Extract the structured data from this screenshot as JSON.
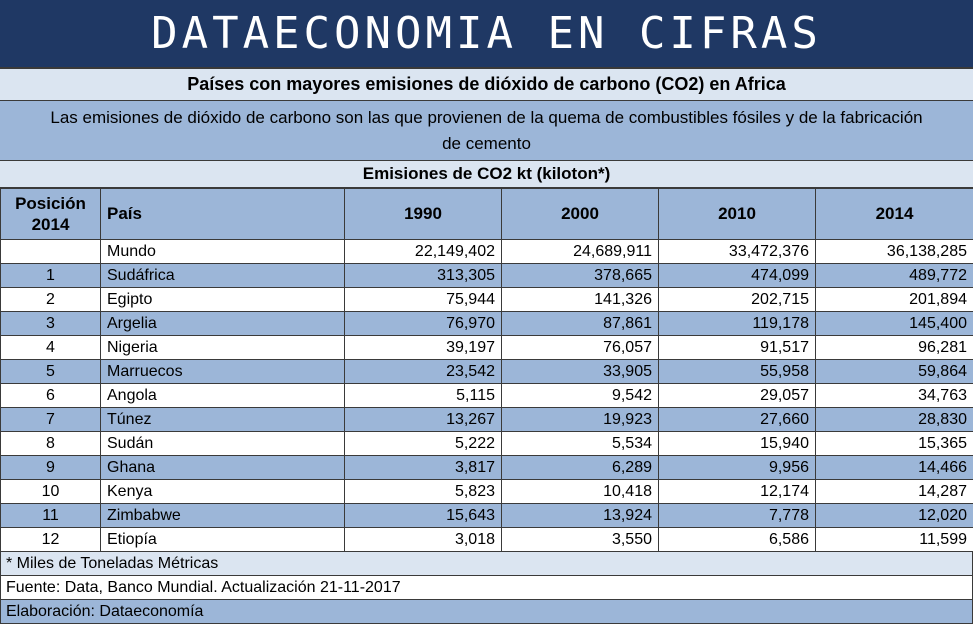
{
  "banner": {
    "title": "DATAECONOMIA EN CIFRAS"
  },
  "subtitle": "Países con mayores emisiones de dióxido de carbono (CO2) en Africa",
  "description": "Las emisiones de dióxido de carbono son las que provienen de la quema de combustibles fósiles y de la fabricación de cemento",
  "units_header": "Emisiones de CO2 kt (kiloton*)",
  "table": {
    "headers": {
      "position": "Posición 2014",
      "country": "País",
      "y1990": "1990",
      "y2000": "2000",
      "y2010": "2010",
      "y2014": "2014"
    },
    "rows": [
      {
        "pos": "",
        "name": "Mundo",
        "v1990": "22,149,402",
        "v2000": "24,689,911",
        "v2010": "33,472,376",
        "v2014": "36,138,285"
      },
      {
        "pos": "1",
        "name": "Sudáfrica",
        "v1990": "313,305",
        "v2000": "378,665",
        "v2010": "474,099",
        "v2014": "489,772"
      },
      {
        "pos": "2",
        "name": "Egipto",
        "v1990": "75,944",
        "v2000": "141,326",
        "v2010": "202,715",
        "v2014": "201,894"
      },
      {
        "pos": "3",
        "name": "Argelia",
        "v1990": "76,970",
        "v2000": "87,861",
        "v2010": "119,178",
        "v2014": "145,400"
      },
      {
        "pos": "4",
        "name": "Nigeria",
        "v1990": "39,197",
        "v2000": "76,057",
        "v2010": "91,517",
        "v2014": "96,281"
      },
      {
        "pos": "5",
        "name": "Marruecos",
        "v1990": "23,542",
        "v2000": "33,905",
        "v2010": "55,958",
        "v2014": "59,864"
      },
      {
        "pos": "6",
        "name": "Angola",
        "v1990": "5,115",
        "v2000": "9,542",
        "v2010": "29,057",
        "v2014": "34,763"
      },
      {
        "pos": "7",
        "name": "Túnez",
        "v1990": "13,267",
        "v2000": "19,923",
        "v2010": "27,660",
        "v2014": "28,830"
      },
      {
        "pos": "8",
        "name": "Sudán",
        "v1990": "5,222",
        "v2000": "5,534",
        "v2010": "15,940",
        "v2014": "15,365"
      },
      {
        "pos": "9",
        "name": "Ghana",
        "v1990": "3,817",
        "v2000": "6,289",
        "v2010": "9,956",
        "v2014": "14,466"
      },
      {
        "pos": "10",
        "name": "Kenya",
        "v1990": "5,823",
        "v2000": "10,418",
        "v2010": "12,174",
        "v2014": "14,287"
      },
      {
        "pos": "11",
        "name": "Zimbabwe",
        "v1990": "15,643",
        "v2000": "13,924",
        "v2010": "7,778",
        "v2014": "12,020"
      },
      {
        "pos": "12",
        "name": "Etiopía",
        "v1990": "3,018",
        "v2000": "3,550",
        "v2010": "6,586",
        "v2014": "11,599"
      }
    ]
  },
  "footer": {
    "note": "* Miles de Toneladas Métricas",
    "source": "Fuente: Data, Banco Mundial. Actualización 21-11-2017",
    "author": "Elaboración: Dataeconomía"
  },
  "colors": {
    "banner_bg": "#1f3864",
    "band_dark": "#9cb6d8",
    "band_light": "#dbe5f1"
  }
}
